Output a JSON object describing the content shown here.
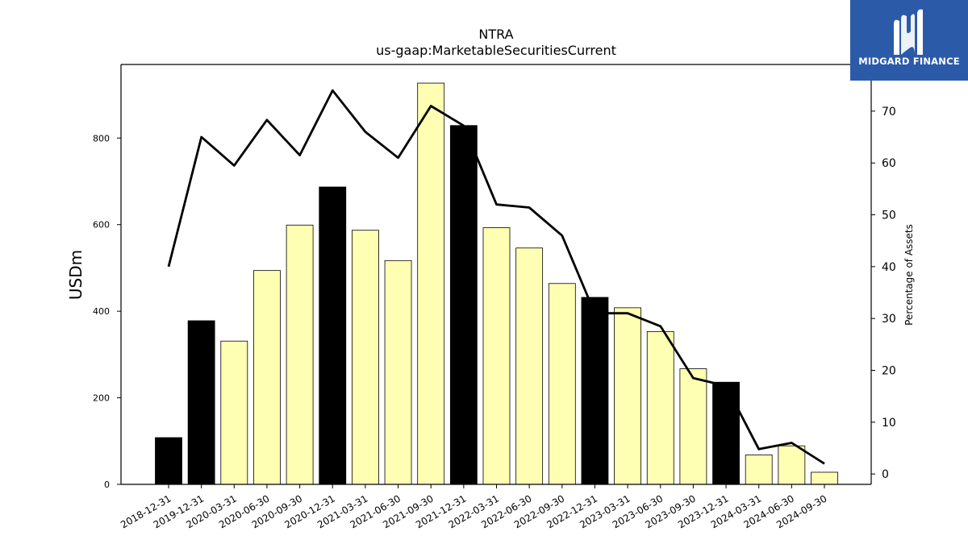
{
  "chart_data": {
    "type": "bar",
    "title": "NTRA",
    "subtitle": "us-gaap:MarketableSecuritiesCurrent",
    "ylabel": "USDm",
    "y2label": "Percentage of Assets",
    "ylim": [
      0,
      970
    ],
    "y2lim": [
      -2,
      79
    ],
    "yticks": [
      0,
      200,
      400,
      600,
      800
    ],
    "y2ticks": [
      0,
      10,
      20,
      30,
      40,
      50,
      60,
      70
    ],
    "categories": [
      "2018-12-31",
      "2019-12-31",
      "2020-03-31",
      "2020-06-30",
      "2020-09-30",
      "2020-12-31",
      "2021-03-31",
      "2021-06-30",
      "2021-09-30",
      "2021-12-31",
      "2022-03-31",
      "2022-06-30",
      "2022-09-30",
      "2022-12-31",
      "2023-03-31",
      "2023-06-30",
      "2023-09-30",
      "2023-12-31",
      "2024-03-31",
      "2024-06-30",
      "2024-09-30"
    ],
    "series": [
      {
        "type": "bar",
        "values": [
          108,
          378,
          331,
          494,
          599,
          687,
          587,
          517,
          927,
          829,
          593,
          546,
          464,
          432,
          408,
          353,
          267,
          236,
          68,
          89,
          28
        ],
        "annual_flags": [
          true,
          true,
          false,
          false,
          false,
          true,
          false,
          false,
          false,
          true,
          false,
          false,
          false,
          true,
          false,
          false,
          false,
          true,
          false,
          false,
          false
        ]
      },
      {
        "type": "line",
        "axis": "right",
        "values": [
          40,
          65,
          59.5,
          68.3,
          61.5,
          74,
          66,
          61,
          71,
          67.2,
          52,
          51.4,
          46,
          31,
          31,
          28.5,
          18.5,
          17,
          4.8,
          6,
          2
        ]
      }
    ],
    "colors": {
      "annual_bar": "#000000",
      "quarter_bar": "#ffffb3",
      "line": "#000000"
    }
  },
  "logo": {
    "text": "MIDGARD FINANCE",
    "bg": "#2b5aa9"
  }
}
